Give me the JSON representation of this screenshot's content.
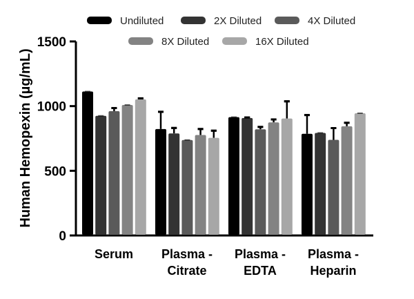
{
  "chart_data": {
    "type": "bar",
    "title": "",
    "xlabel": "",
    "ylabel": "Human Hemopexin (µg/mL)",
    "ylim": [
      0,
      1500
    ],
    "yticks": [
      0,
      500,
      1000,
      1500
    ],
    "categories": [
      [
        "Serum"
      ],
      [
        "Plasma -",
        "Citrate"
      ],
      [
        "Plasma -",
        "EDTA"
      ],
      [
        "Plasma -",
        "Heparin"
      ]
    ],
    "legend_position": "top",
    "grid": false,
    "series": [
      {
        "name": "Undiluted",
        "color": "#000000",
        "values": [
          1113,
          823,
          915,
          786
        ],
        "error_upper": [
          1113,
          956,
          915,
          931
        ]
      },
      {
        "name": "2X Diluted",
        "color": "#333333",
        "values": [
          925,
          789,
          908,
          793
        ],
        "error_upper": [
          925,
          831,
          912,
          793
        ]
      },
      {
        "name": "4X Diluted",
        "color": "#5a5a5a",
        "values": [
          961,
          738,
          821,
          739
        ],
        "error_upper": [
          985,
          738,
          839,
          830
        ]
      },
      {
        "name": "8X Diluted",
        "color": "#838383",
        "values": [
          1009,
          777,
          874,
          844
        ],
        "error_upper": [
          1009,
          823,
          897,
          871
        ]
      },
      {
        "name": "16X Diluted",
        "color": "#a7a7a7",
        "values": [
          1052,
          755,
          904,
          945
        ],
        "error_upper": [
          1060,
          810,
          1037,
          945
        ]
      }
    ]
  }
}
